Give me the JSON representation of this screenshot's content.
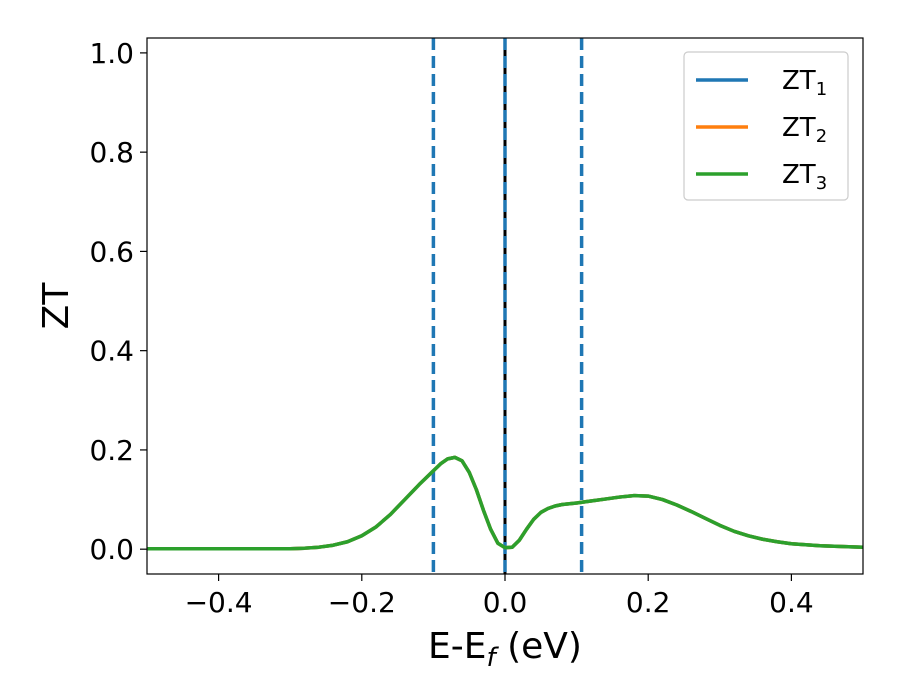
{
  "chart_data": {
    "type": "line",
    "title": "",
    "xlabel": "E-E",
    "xlabel_sub": "f",
    "xlabel_unit": " (eV)",
    "ylabel": "ZT",
    "xlim": [
      -0.5,
      0.5
    ],
    "ylim": [
      -0.05,
      1.03
    ],
    "xticks": [
      -0.4,
      -0.2,
      0.0,
      0.2,
      0.4
    ],
    "xtick_labels": [
      "−0.4",
      "−0.2",
      "0.0",
      "0.2",
      "0.4"
    ],
    "yticks": [
      0.0,
      0.2,
      0.4,
      0.6,
      0.8,
      1.0
    ],
    "ytick_labels": [
      "0.0",
      "0.2",
      "0.4",
      "0.6",
      "0.8",
      "1.0"
    ],
    "legend_position": "top-right",
    "grid": false,
    "x": [
      -0.5,
      -0.4,
      -0.3,
      -0.28,
      -0.26,
      -0.24,
      -0.22,
      -0.2,
      -0.18,
      -0.16,
      -0.14,
      -0.12,
      -0.1,
      -0.09,
      -0.08,
      -0.07,
      -0.06,
      -0.05,
      -0.04,
      -0.03,
      -0.02,
      -0.01,
      0.0,
      0.01,
      0.02,
      0.03,
      0.04,
      0.05,
      0.06,
      0.07,
      0.08,
      0.1,
      0.12,
      0.14,
      0.16,
      0.18,
      0.2,
      0.22,
      0.24,
      0.26,
      0.28,
      0.3,
      0.32,
      0.34,
      0.36,
      0.38,
      0.4,
      0.42,
      0.44,
      0.46,
      0.48,
      0.5
    ],
    "series": [
      {
        "name": "ZT",
        "name_sub": "1",
        "color": "#1f77b4",
        "values": [
          0.001,
          0.001,
          0.001,
          0.002,
          0.004,
          0.008,
          0.015,
          0.027,
          0.045,
          0.07,
          0.1,
          0.13,
          0.158,
          0.172,
          0.182,
          0.185,
          0.178,
          0.155,
          0.12,
          0.078,
          0.04,
          0.012,
          0.003,
          0.004,
          0.018,
          0.04,
          0.06,
          0.074,
          0.082,
          0.087,
          0.09,
          0.093,
          0.097,
          0.101,
          0.105,
          0.108,
          0.107,
          0.1,
          0.089,
          0.076,
          0.062,
          0.048,
          0.036,
          0.027,
          0.02,
          0.015,
          0.011,
          0.009,
          0.007,
          0.006,
          0.005,
          0.004
        ]
      },
      {
        "name": "ZT",
        "name_sub": "2",
        "color": "#ff7f0e",
        "values": [
          0.001,
          0.001,
          0.001,
          0.002,
          0.004,
          0.008,
          0.015,
          0.027,
          0.045,
          0.07,
          0.1,
          0.13,
          0.158,
          0.172,
          0.182,
          0.185,
          0.178,
          0.155,
          0.12,
          0.078,
          0.04,
          0.012,
          0.003,
          0.004,
          0.018,
          0.04,
          0.06,
          0.074,
          0.082,
          0.087,
          0.09,
          0.093,
          0.097,
          0.101,
          0.105,
          0.108,
          0.107,
          0.1,
          0.089,
          0.076,
          0.062,
          0.048,
          0.036,
          0.027,
          0.02,
          0.015,
          0.011,
          0.009,
          0.007,
          0.006,
          0.005,
          0.004
        ]
      },
      {
        "name": "ZT",
        "name_sub": "3",
        "color": "#2ca02c",
        "values": [
          0.001,
          0.001,
          0.001,
          0.002,
          0.004,
          0.008,
          0.015,
          0.027,
          0.045,
          0.07,
          0.1,
          0.13,
          0.158,
          0.172,
          0.182,
          0.185,
          0.178,
          0.155,
          0.12,
          0.078,
          0.04,
          0.012,
          0.003,
          0.004,
          0.018,
          0.04,
          0.06,
          0.074,
          0.082,
          0.087,
          0.09,
          0.093,
          0.097,
          0.101,
          0.105,
          0.108,
          0.107,
          0.1,
          0.089,
          0.076,
          0.062,
          0.048,
          0.036,
          0.027,
          0.02,
          0.015,
          0.011,
          0.009,
          0.007,
          0.006,
          0.005,
          0.004
        ]
      }
    ],
    "vlines": [
      {
        "x": -0.1,
        "style": "dashed",
        "color": "#1f77b4"
      },
      {
        "x": 0.0,
        "style": "solid",
        "color": "#000000"
      },
      {
        "x": 0.0,
        "style": "dashed",
        "color": "#1f77b4"
      },
      {
        "x": 0.107,
        "style": "dashed",
        "color": "#1f77b4"
      }
    ]
  }
}
